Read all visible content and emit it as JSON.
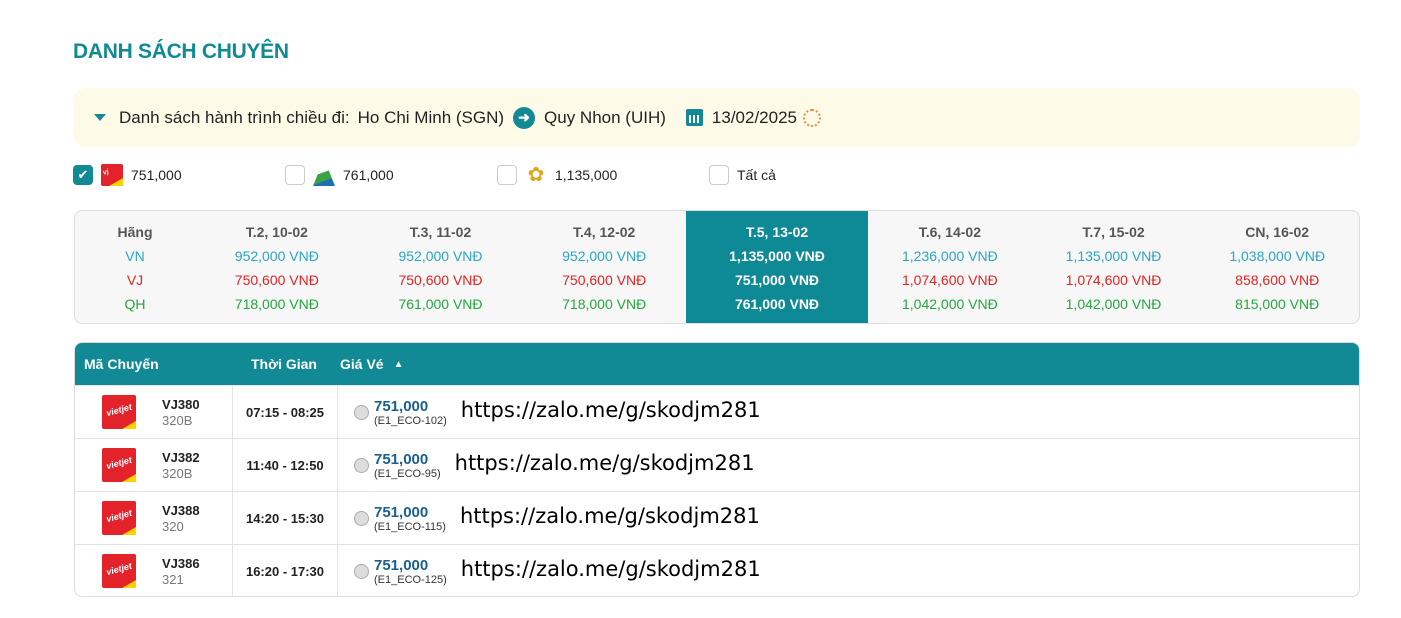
{
  "title": "DANH SÁCH CHUYÊN",
  "route": {
    "label": "Danh sách hành trình chiều đi:",
    "from": "Ho Chi Minh (SGN)",
    "to": "Quy Nhon (UIH)",
    "date": "13/02/2025"
  },
  "filters": [
    {
      "airline": "VJ",
      "price": "751,000",
      "checked": true
    },
    {
      "airline": "QH",
      "price": "761,000",
      "checked": false
    },
    {
      "airline": "VN",
      "price": "1,135,000",
      "checked": false
    },
    {
      "label": "Tất cả",
      "checked": false
    }
  ],
  "logo_text": "VietJet Air.com",
  "price_table": {
    "header": "Hãng",
    "airlines": [
      "VN",
      "VJ",
      "QH"
    ],
    "colors": {
      "VN": "#2aa5c5",
      "VJ": "#e02424",
      "QH": "#22a83c",
      "selected_bg": "#0e8a96"
    },
    "days": [
      {
        "label": "T.2, 10-02",
        "VN": "952,000 VNĐ",
        "VJ": "750,600 VNĐ",
        "QH": "718,000 VNĐ"
      },
      {
        "label": "T.3, 11-02",
        "VN": "952,000 VNĐ",
        "VJ": "750,600 VNĐ",
        "QH": "761,000 VNĐ"
      },
      {
        "label": "T.4, 12-02",
        "VN": "952,000 VNĐ",
        "VJ": "750,600 VNĐ",
        "QH": "718,000 VNĐ"
      },
      {
        "label": "T.5, 13-02",
        "VN": "1,135,000 VNĐ",
        "VJ": "751,000 VNĐ",
        "QH": "761,000 VNĐ",
        "selected": true
      },
      {
        "label": "T.6, 14-02",
        "VN": "1,236,000 VNĐ",
        "VJ": "1,074,600 VNĐ",
        "QH": "1,042,000 VNĐ"
      },
      {
        "label": "T.7, 15-02",
        "VN": "1,135,000 VNĐ",
        "VJ": "1,074,600 VNĐ",
        "QH": "1,042,000 VNĐ"
      },
      {
        "label": "CN, 16-02",
        "VN": "1,038,000 VNĐ",
        "VJ": "858,600 VNĐ",
        "QH": "815,000 VNĐ"
      }
    ]
  },
  "flights": {
    "headers": {
      "code": "Mã Chuyến",
      "time": "Thời Gian",
      "price": "Giá Vé"
    },
    "sort": "ascending",
    "rows": [
      {
        "code": "VJ380",
        "aircraft": "320B",
        "time": "07:15 - 08:25",
        "price": "751,000",
        "fare": "(E1_ECO-102)",
        "overlay": "https://zalo.me/g/skodjm281"
      },
      {
        "code": "VJ382",
        "aircraft": "320B",
        "time": "11:40 - 12:50",
        "price": "751,000",
        "fare": "(E1_ECO-95)",
        "overlay": "https://zalo.me/g/skodjm281"
      },
      {
        "code": "VJ388",
        "aircraft": "320",
        "time": "14:20 - 15:30",
        "price": "751,000",
        "fare": "(E1_ECO-115)",
        "overlay": "https://zalo.me/g/skodjm281"
      },
      {
        "code": "VJ386",
        "aircraft": "321",
        "time": "16:20 - 17:30",
        "price": "751,000",
        "fare": "(E1_ECO-125)",
        "overlay": "https://zalo.me/g/skodjm281"
      }
    ]
  }
}
